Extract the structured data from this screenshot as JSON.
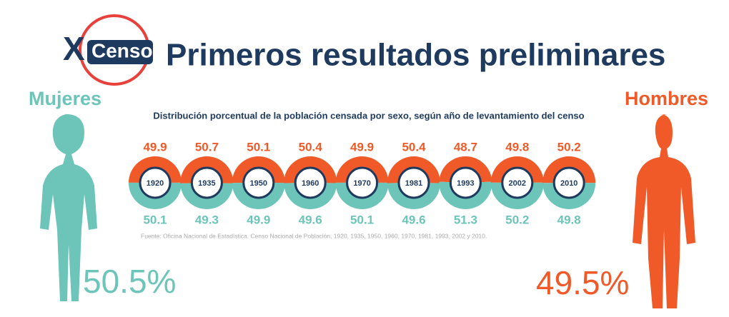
{
  "logo": {
    "mark": "X",
    "name": "Censo"
  },
  "chart_data": {
    "type": "donut",
    "title": "Primeros resultados preliminares",
    "subtitle": "Distribución porcentual de la población censada por sexo, según año de levantamiento del censo",
    "note": "Fuente: Oficina Nacional de Estadística. Censo Nacional de Población, 1920, 1935, 1950, 1960, 1970, 1981, 1993, 2002 y 2010.",
    "categories": [
      "1920",
      "1935",
      "1950",
      "1960",
      "1970",
      "1981",
      "1993",
      "2002",
      "2010"
    ],
    "series": [
      {
        "name": "Hombres",
        "color": "#f05a28",
        "total": "49.5%",
        "values": [
          49.9,
          50.7,
          50.1,
          50.4,
          49.9,
          50.4,
          48.7,
          49.8,
          50.2
        ]
      },
      {
        "name": "Mujeres",
        "color": "#6cc5b8",
        "total": "50.5%",
        "values": [
          50.1,
          49.3,
          49.9,
          49.6,
          50.1,
          49.6,
          51.3,
          50.2,
          49.8
        ]
      }
    ]
  }
}
